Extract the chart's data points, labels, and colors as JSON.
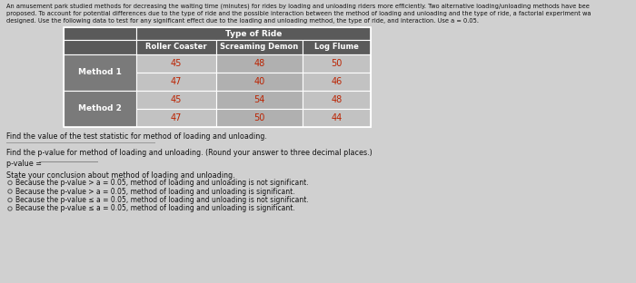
{
  "title_lines": [
    "An amusement park studied methods for decreasing the waiting time (minutes) for rides by loading and unloading riders more efficiently. Two alternative loading/unloading methods have bee",
    "proposed. To account for potential differences due to the type of ride and the possible interaction between the method of loading and unloading and the type of ride, a factorial experiment wa",
    "designed. Use the following data to test for any significant effect due to the loading and unloading method, the type of ride, and interaction. Use a = 0.05."
  ],
  "table_header_top": "Type of Ride",
  "table_col_headers": [
    "Roller Coaster",
    "Screaming Demon",
    "Log Flume"
  ],
  "table_row_groups": [
    "Method 1",
    "Method 2"
  ],
  "table_data": [
    [
      [
        45,
        48,
        50
      ],
      [
        47,
        40,
        46
      ]
    ],
    [
      [
        45,
        54,
        48
      ],
      [
        47,
        50,
        44
      ]
    ]
  ],
  "find_test_stat_text": "Find the value of the test statistic for method of loading and unloading.",
  "find_pvalue_text": "Find the p-value for method of loading and unloading. (Round your answer to three decimal places.)",
  "pvalue_label": "p-value =",
  "conclusion_header": "State your conclusion about method of loading and unloading.",
  "conclusion_options": [
    "Because the p-value > a = 0.05, method of loading and unloading is not significant.",
    "Because the p-value > a = 0.05, method of loading and unloading is significant.",
    "Because the p-value ≤ a = 0.05, method of loading and unloading is not significant.",
    "Because the p-value ≤ a = 0.05, method of loading and unloading is significant."
  ],
  "bg_color": "#d8d8d8",
  "dark_gray": "#5a5a5a",
  "mid_gray": "#7a7a7a",
  "cell_light": "#c2c2c2",
  "cell_mid": "#b0b0b0",
  "text_red": "#bb2200",
  "text_dark": "#111111",
  "text_white": "#ffffff",
  "page_bg": "#d0d0d0"
}
